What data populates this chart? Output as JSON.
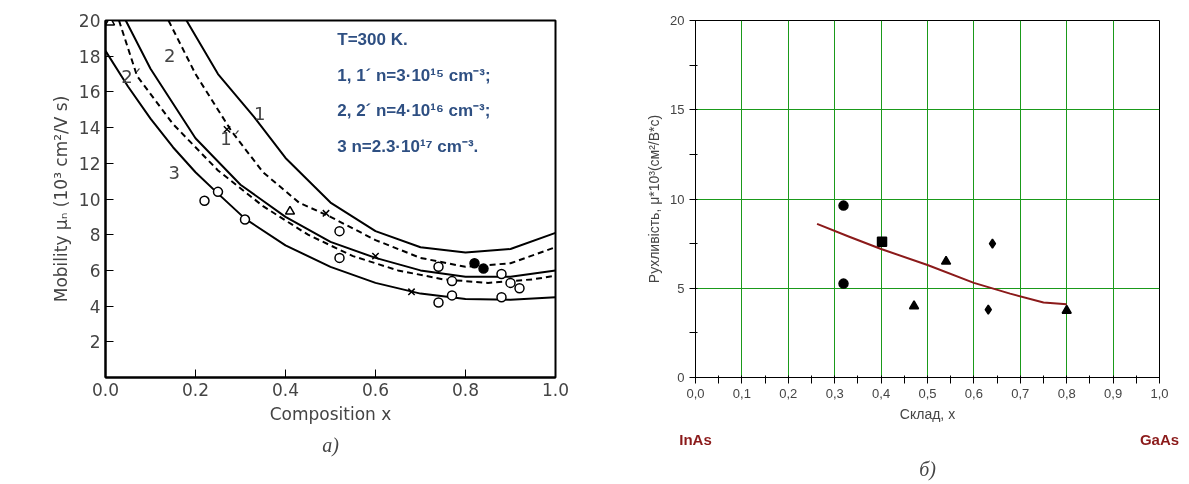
{
  "chart_data": [
    {
      "type": "line",
      "xlabel": "Composition x",
      "ylabel": "Mobility μₙ (10³ cm²/V s)",
      "xlim": [
        0,
        1
      ],
      "ylim": [
        0,
        20
      ],
      "xticks": [
        {
          "value": 0,
          "label": "0.0"
        },
        0.2,
        0.4,
        0.6,
        0.8,
        {
          "value": 1,
          "label": "1.0"
        }
      ],
      "yticks": [
        {
          "value": 0,
          "label": null
        },
        2,
        4,
        6,
        8,
        10,
        12,
        14,
        16,
        18,
        20
      ],
      "grid": false,
      "series": [
        {
          "color": "#000000",
          "line_style": "solid",
          "x": [
            0.18,
            0.25,
            0.33,
            0.4,
            0.5,
            0.6,
            0.7,
            0.8,
            0.9,
            1.0
          ],
          "values": [
            20,
            17,
            14.6,
            12.3,
            9.8,
            8.2,
            7.3,
            7.0,
            7.2,
            8.1
          ]
        },
        {
          "color": "#000000",
          "line_style": "dashed",
          "x": [
            0.14,
            0.2,
            0.28,
            0.35,
            0.43,
            0.5,
            0.6,
            0.7,
            0.8,
            0.9,
            1.0
          ],
          "values": [
            20,
            17,
            13.8,
            11.5,
            9.8,
            9.0,
            7.7,
            6.7,
            6.2,
            6.4,
            7.3
          ]
        },
        {
          "color": "#000000",
          "line_style": "solid",
          "x": [
            0.045,
            0.1,
            0.2,
            0.3,
            0.4,
            0.5,
            0.6,
            0.7,
            0.8,
            0.9,
            1.0
          ],
          "values": [
            20,
            17.3,
            13.4,
            10.8,
            9.0,
            7.6,
            6.7,
            6.0,
            5.65,
            5.65,
            6.0
          ]
        },
        {
          "color": "#000000",
          "line_style": "dashed",
          "x": [
            0.03,
            0.07,
            0.15,
            0.25,
            0.35,
            0.45,
            0.55,
            0.65,
            0.75,
            0.85,
            0.95,
            1.0
          ],
          "values": [
            20,
            16.9,
            14.2,
            11.6,
            9.6,
            8.0,
            6.8,
            6.0,
            5.5,
            5.3,
            5.5,
            5.7
          ]
        },
        {
          "color": "#000000",
          "line_style": "solid",
          "x": [
            0,
            0.05,
            0.1,
            0.15,
            0.2,
            0.25,
            0.31,
            0.4,
            0.5,
            0.6,
            0.7,
            0.8,
            0.9,
            1.0
          ],
          "values": [
            18.3,
            16.3,
            14.5,
            12.9,
            11.5,
            10.3,
            8.9,
            7.4,
            6.2,
            5.3,
            4.7,
            4.4,
            4.35,
            4.5
          ]
        },
        {
          "type": "scatter",
          "marker": "circle",
          "color": "#ffffff",
          "x": [
            0.22,
            0.25,
            0.31,
            0.52,
            0.52,
            0.74,
            0.74,
            0.77,
            0.77,
            0.88,
            0.88,
            0.9,
            0.92
          ],
          "values": [
            9.9,
            10.4,
            8.85,
            8.2,
            6.7,
            6.2,
            4.2,
            5.4,
            4.6,
            5.8,
            4.5,
            5.3,
            5.0
          ]
        },
        {
          "type": "scatter",
          "marker": "circle",
          "color": "#000000",
          "x": [
            0.82,
            0.84
          ],
          "values": [
            6.4,
            6.1
          ]
        },
        {
          "type": "scatter",
          "marker": "cross",
          "color": "#000000",
          "x": [
            0.27,
            0.49,
            0.6,
            0.68
          ],
          "values": [
            13.9,
            9.2,
            6.8,
            4.8
          ]
        },
        {
          "type": "scatter",
          "marker": "triangle",
          "color": "#ffffff",
          "x": [
            0.01,
            0.41
          ],
          "values": [
            19.9,
            9.3
          ]
        }
      ],
      "annotations": [
        "1",
        "1´",
        "2",
        "2´",
        "3",
        "T=300 K.",
        "1, 1´ n=3·10¹⁵ cm⁻³;",
        "2, 2´ n=4·10¹⁶ cm⁻³;",
        "3 n=2.3·10¹⁷ cm⁻³.",
        "a)"
      ]
    },
    {
      "type": "scatter",
      "xlabel": "Склад, x",
      "ylabel": "Рухливість, μ*10³(см²/В*с)",
      "xlim": [
        0,
        1
      ],
      "ylim": [
        0,
        20
      ],
      "xticks": [
        {
          "value": 0,
          "label": "0,0"
        },
        {
          "value": 0.05,
          "label": null
        },
        {
          "value": 0.1,
          "label": "0,1"
        },
        {
          "value": 0.15,
          "label": null
        },
        {
          "value": 0.2,
          "label": "0,2"
        },
        {
          "value": 0.25,
          "label": null
        },
        {
          "value": 0.3,
          "label": "0,3"
        },
        {
          "value": 0.35,
          "label": null
        },
        {
          "value": 0.4,
          "label": "0,4"
        },
        {
          "value": 0.45,
          "label": null
        },
        {
          "value": 0.5,
          "label": "0,5"
        },
        {
          "value": 0.55,
          "label": null
        },
        {
          "value": 0.6,
          "label": "0,6"
        },
        {
          "value": 0.65,
          "label": null
        },
        {
          "value": 0.7,
          "label": "0,7"
        },
        {
          "value": 0.75,
          "label": null
        },
        {
          "value": 0.8,
          "label": "0,8"
        },
        {
          "value": 0.85,
          "label": null
        },
        {
          "value": 0.9,
          "label": "0,9"
        },
        {
          "value": 0.95,
          "label": null
        },
        {
          "value": 1,
          "label": "1,0"
        }
      ],
      "yticks": [
        0,
        {
          "value": 2.5,
          "label": null
        },
        5,
        {
          "value": 7.5,
          "label": null
        },
        10,
        {
          "value": 12.5,
          "label": null
        },
        15,
        {
          "value": 17.5,
          "label": null
        },
        20
      ],
      "grid": true,
      "series": [
        {
          "marker": "circle",
          "color": "#000000",
          "x": [
            0.319,
            0.319
          ],
          "values": [
            9.63,
            5.26
          ]
        },
        {
          "marker": "square",
          "color": "#000000",
          "x": [
            0.402
          ],
          "values": [
            7.6
          ]
        },
        {
          "marker": "triangle",
          "color": "#000000",
          "x": [
            0.471,
            0.54
          ],
          "values": [
            4.0,
            6.5
          ]
        },
        {
          "marker": "diamond",
          "color": "#000000",
          "x": [
            0.64,
            0.631
          ],
          "values": [
            7.5,
            3.8
          ]
        },
        {
          "marker": "triangle",
          "color": "#000000",
          "x": [
            0.8
          ],
          "values": [
            3.75
          ]
        },
        {
          "type": "line",
          "color": "#8b1a1a",
          "line_style": "solid",
          "x": [
            0.262,
            0.33,
            0.4,
            0.5,
            0.6,
            0.678,
            0.75,
            0.8
          ],
          "values": [
            8.61,
            7.9,
            7.2,
            6.3,
            5.3,
            4.7,
            4.2,
            4.1
          ]
        }
      ],
      "annotations": [
        "InAs",
        "GaAs",
        "б)"
      ]
    }
  ]
}
